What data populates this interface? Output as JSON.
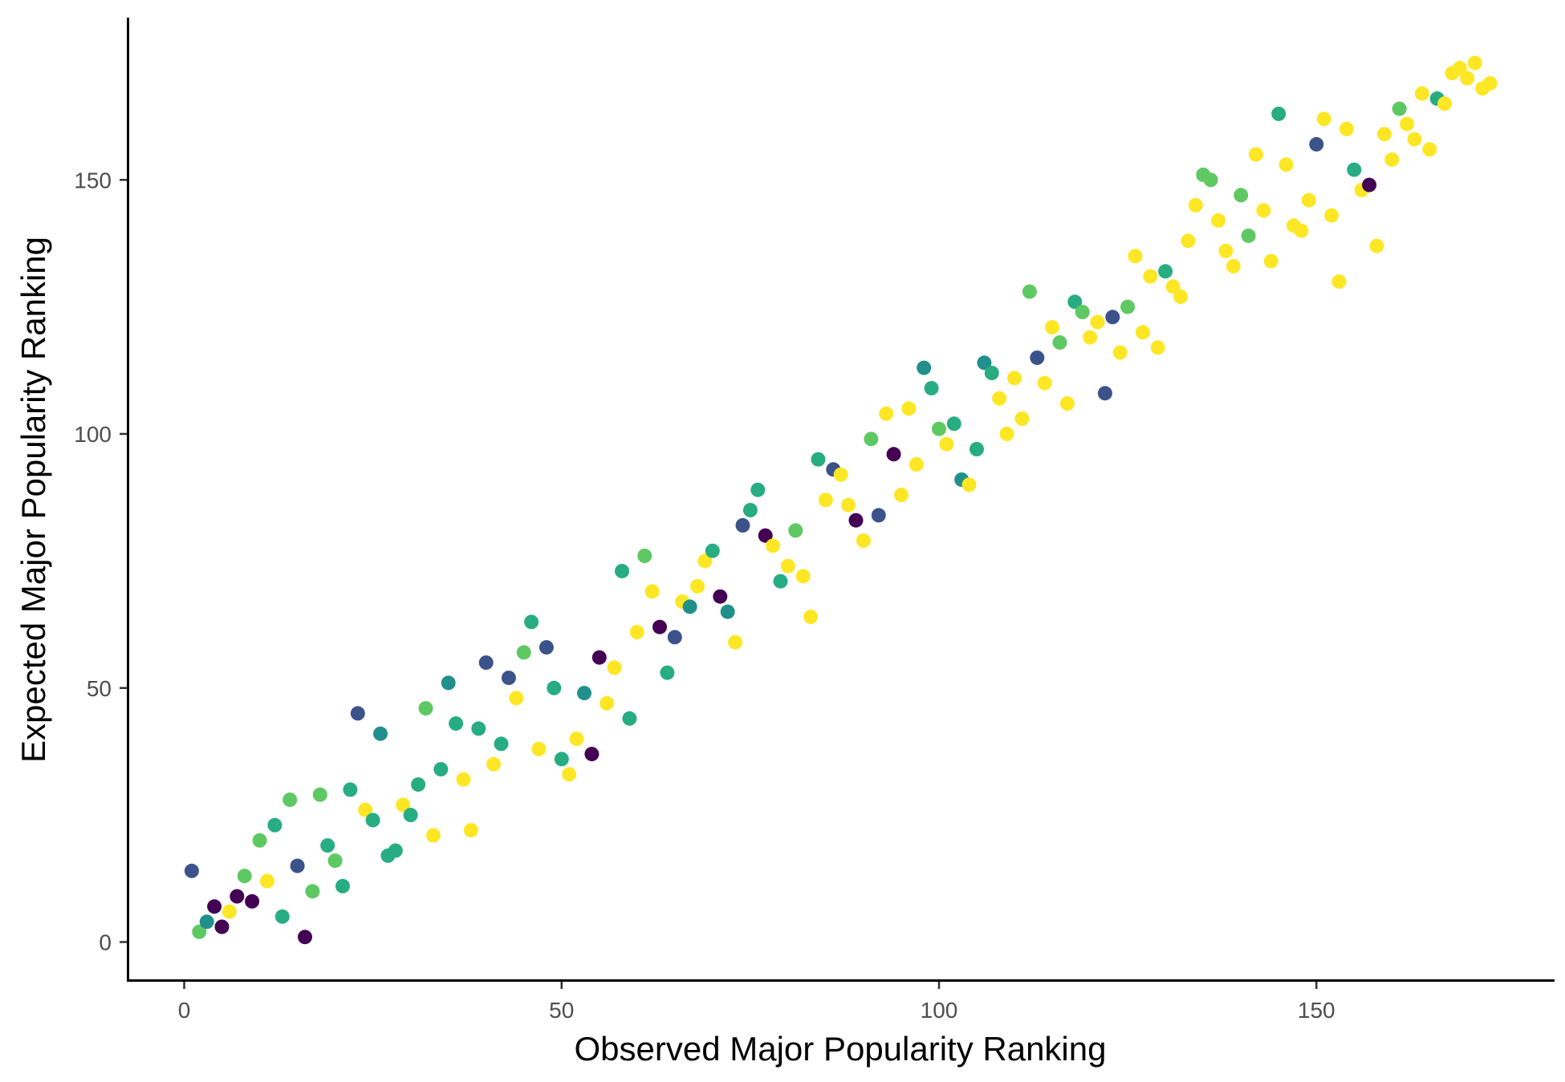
{
  "chart_data": {
    "type": "scatter",
    "title": "",
    "xlabel": "Observed Major Popularity Ranking",
    "ylabel": "Expected Major Popularity Ranking",
    "xlim": [
      -7.5,
      181
    ],
    "ylim": [
      -7.5,
      181
    ],
    "xticks": [
      0,
      50,
      100,
      150
    ],
    "yticks": [
      0,
      50,
      100,
      150
    ],
    "grid": false,
    "legend": "none",
    "palette": {
      "purple": "#440154",
      "indigo": "#3b528b",
      "teal": "#21908c",
      "green": "#27ad81",
      "lime": "#5ec962",
      "yellow": "#fde725"
    },
    "points": [
      {
        "x": 1,
        "y": 14,
        "c": "indigo"
      },
      {
        "x": 2,
        "y": 2,
        "c": "lime"
      },
      {
        "x": 3,
        "y": 4,
        "c": "teal"
      },
      {
        "x": 4,
        "y": 7,
        "c": "purple"
      },
      {
        "x": 5,
        "y": 3,
        "c": "purple"
      },
      {
        "x": 6,
        "y": 6,
        "c": "yellow"
      },
      {
        "x": 7,
        "y": 9,
        "c": "purple"
      },
      {
        "x": 8,
        "y": 13,
        "c": "lime"
      },
      {
        "x": 9,
        "y": 8,
        "c": "purple"
      },
      {
        "x": 10,
        "y": 20,
        "c": "lime"
      },
      {
        "x": 11,
        "y": 12,
        "c": "yellow"
      },
      {
        "x": 12,
        "y": 23,
        "c": "green"
      },
      {
        "x": 13,
        "y": 5,
        "c": "green"
      },
      {
        "x": 14,
        "y": 28,
        "c": "lime"
      },
      {
        "x": 15,
        "y": 15,
        "c": "indigo"
      },
      {
        "x": 16,
        "y": 1,
        "c": "purple"
      },
      {
        "x": 17,
        "y": 10,
        "c": "lime"
      },
      {
        "x": 18,
        "y": 29,
        "c": "lime"
      },
      {
        "x": 19,
        "y": 19,
        "c": "green"
      },
      {
        "x": 20,
        "y": 16,
        "c": "lime"
      },
      {
        "x": 21,
        "y": 11,
        "c": "green"
      },
      {
        "x": 22,
        "y": 30,
        "c": "green"
      },
      {
        "x": 23,
        "y": 45,
        "c": "indigo"
      },
      {
        "x": 24,
        "y": 26,
        "c": "yellow"
      },
      {
        "x": 25,
        "y": 24,
        "c": "green"
      },
      {
        "x": 26,
        "y": 41,
        "c": "teal"
      },
      {
        "x": 27,
        "y": 17,
        "c": "green"
      },
      {
        "x": 28,
        "y": 18,
        "c": "green"
      },
      {
        "x": 29,
        "y": 27,
        "c": "yellow"
      },
      {
        "x": 30,
        "y": 25,
        "c": "green"
      },
      {
        "x": 31,
        "y": 31,
        "c": "green"
      },
      {
        "x": 32,
        "y": 46,
        "c": "lime"
      },
      {
        "x": 33,
        "y": 21,
        "c": "yellow"
      },
      {
        "x": 34,
        "y": 34,
        "c": "green"
      },
      {
        "x": 35,
        "y": 51,
        "c": "teal"
      },
      {
        "x": 36,
        "y": 43,
        "c": "green"
      },
      {
        "x": 37,
        "y": 32,
        "c": "yellow"
      },
      {
        "x": 38,
        "y": 22,
        "c": "yellow"
      },
      {
        "x": 39,
        "y": 42,
        "c": "green"
      },
      {
        "x": 40,
        "y": 55,
        "c": "indigo"
      },
      {
        "x": 41,
        "y": 35,
        "c": "yellow"
      },
      {
        "x": 42,
        "y": 39,
        "c": "green"
      },
      {
        "x": 43,
        "y": 52,
        "c": "indigo"
      },
      {
        "x": 44,
        "y": 48,
        "c": "yellow"
      },
      {
        "x": 45,
        "y": 57,
        "c": "lime"
      },
      {
        "x": 46,
        "y": 63,
        "c": "green"
      },
      {
        "x": 47,
        "y": 38,
        "c": "yellow"
      },
      {
        "x": 48,
        "y": 58,
        "c": "indigo"
      },
      {
        "x": 49,
        "y": 50,
        "c": "green"
      },
      {
        "x": 50,
        "y": 36,
        "c": "green"
      },
      {
        "x": 51,
        "y": 33,
        "c": "yellow"
      },
      {
        "x": 52,
        "y": 40,
        "c": "yellow"
      },
      {
        "x": 53,
        "y": 49,
        "c": "teal"
      },
      {
        "x": 54,
        "y": 37,
        "c": "purple"
      },
      {
        "x": 55,
        "y": 56,
        "c": "purple"
      },
      {
        "x": 56,
        "y": 47,
        "c": "yellow"
      },
      {
        "x": 57,
        "y": 54,
        "c": "yellow"
      },
      {
        "x": 58,
        "y": 73,
        "c": "green"
      },
      {
        "x": 59,
        "y": 44,
        "c": "green"
      },
      {
        "x": 60,
        "y": 61,
        "c": "yellow"
      },
      {
        "x": 61,
        "y": 76,
        "c": "lime"
      },
      {
        "x": 62,
        "y": 69,
        "c": "yellow"
      },
      {
        "x": 63,
        "y": 62,
        "c": "purple"
      },
      {
        "x": 64,
        "y": 53,
        "c": "green"
      },
      {
        "x": 65,
        "y": 60,
        "c": "indigo"
      },
      {
        "x": 66,
        "y": 67,
        "c": "yellow"
      },
      {
        "x": 67,
        "y": 66,
        "c": "teal"
      },
      {
        "x": 68,
        "y": 70,
        "c": "yellow"
      },
      {
        "x": 69,
        "y": 75,
        "c": "yellow"
      },
      {
        "x": 70,
        "y": 77,
        "c": "green"
      },
      {
        "x": 71,
        "y": 68,
        "c": "purple"
      },
      {
        "x": 72,
        "y": 65,
        "c": "teal"
      },
      {
        "x": 73,
        "y": 59,
        "c": "yellow"
      },
      {
        "x": 74,
        "y": 82,
        "c": "indigo"
      },
      {
        "x": 75,
        "y": 85,
        "c": "green"
      },
      {
        "x": 76,
        "y": 89,
        "c": "green"
      },
      {
        "x": 77,
        "y": 80,
        "c": "purple"
      },
      {
        "x": 78,
        "y": 78,
        "c": "yellow"
      },
      {
        "x": 79,
        "y": 71,
        "c": "green"
      },
      {
        "x": 80,
        "y": 74,
        "c": "yellow"
      },
      {
        "x": 81,
        "y": 81,
        "c": "lime"
      },
      {
        "x": 82,
        "y": 72,
        "c": "yellow"
      },
      {
        "x": 83,
        "y": 64,
        "c": "yellow"
      },
      {
        "x": 84,
        "y": 95,
        "c": "green"
      },
      {
        "x": 85,
        "y": 87,
        "c": "yellow"
      },
      {
        "x": 86,
        "y": 93,
        "c": "indigo"
      },
      {
        "x": 87,
        "y": 92,
        "c": "yellow"
      },
      {
        "x": 88,
        "y": 86,
        "c": "yellow"
      },
      {
        "x": 89,
        "y": 83,
        "c": "purple"
      },
      {
        "x": 90,
        "y": 79,
        "c": "yellow"
      },
      {
        "x": 91,
        "y": 99,
        "c": "lime"
      },
      {
        "x": 92,
        "y": 84,
        "c": "indigo"
      },
      {
        "x": 93,
        "y": 104,
        "c": "yellow"
      },
      {
        "x": 94,
        "y": 96,
        "c": "purple"
      },
      {
        "x": 95,
        "y": 88,
        "c": "yellow"
      },
      {
        "x": 96,
        "y": 105,
        "c": "yellow"
      },
      {
        "x": 97,
        "y": 94,
        "c": "yellow"
      },
      {
        "x": 98,
        "y": 113,
        "c": "teal"
      },
      {
        "x": 99,
        "y": 109,
        "c": "green"
      },
      {
        "x": 100,
        "y": 101,
        "c": "lime"
      },
      {
        "x": 101,
        "y": 98,
        "c": "yellow"
      },
      {
        "x": 102,
        "y": 102,
        "c": "green"
      },
      {
        "x": 103,
        "y": 91,
        "c": "teal"
      },
      {
        "x": 104,
        "y": 90,
        "c": "yellow"
      },
      {
        "x": 105,
        "y": 97,
        "c": "green"
      },
      {
        "x": 106,
        "y": 114,
        "c": "teal"
      },
      {
        "x": 107,
        "y": 112,
        "c": "green"
      },
      {
        "x": 108,
        "y": 107,
        "c": "yellow"
      },
      {
        "x": 109,
        "y": 100,
        "c": "yellow"
      },
      {
        "x": 110,
        "y": 111,
        "c": "yellow"
      },
      {
        "x": 111,
        "y": 103,
        "c": "yellow"
      },
      {
        "x": 112,
        "y": 128,
        "c": "lime"
      },
      {
        "x": 113,
        "y": 115,
        "c": "indigo"
      },
      {
        "x": 114,
        "y": 110,
        "c": "yellow"
      },
      {
        "x": 115,
        "y": 121,
        "c": "yellow"
      },
      {
        "x": 116,
        "y": 118,
        "c": "lime"
      },
      {
        "x": 117,
        "y": 106,
        "c": "yellow"
      },
      {
        "x": 118,
        "y": 126,
        "c": "green"
      },
      {
        "x": 119,
        "y": 124,
        "c": "lime"
      },
      {
        "x": 120,
        "y": 119,
        "c": "yellow"
      },
      {
        "x": 121,
        "y": 122,
        "c": "yellow"
      },
      {
        "x": 122,
        "y": 108,
        "c": "indigo"
      },
      {
        "x": 123,
        "y": 123,
        "c": "indigo"
      },
      {
        "x": 124,
        "y": 116,
        "c": "yellow"
      },
      {
        "x": 125,
        "y": 125,
        "c": "lime"
      },
      {
        "x": 126,
        "y": 135,
        "c": "yellow"
      },
      {
        "x": 127,
        "y": 120,
        "c": "yellow"
      },
      {
        "x": 128,
        "y": 131,
        "c": "yellow"
      },
      {
        "x": 129,
        "y": 117,
        "c": "yellow"
      },
      {
        "x": 130,
        "y": 132,
        "c": "green"
      },
      {
        "x": 131,
        "y": 129,
        "c": "yellow"
      },
      {
        "x": 132,
        "y": 127,
        "c": "yellow"
      },
      {
        "x": 133,
        "y": 138,
        "c": "yellow"
      },
      {
        "x": 134,
        "y": 145,
        "c": "yellow"
      },
      {
        "x": 135,
        "y": 151,
        "c": "lime"
      },
      {
        "x": 136,
        "y": 150,
        "c": "lime"
      },
      {
        "x": 137,
        "y": 142,
        "c": "yellow"
      },
      {
        "x": 138,
        "y": 136,
        "c": "yellow"
      },
      {
        "x": 139,
        "y": 133,
        "c": "yellow"
      },
      {
        "x": 140,
        "y": 147,
        "c": "lime"
      },
      {
        "x": 141,
        "y": 139,
        "c": "lime"
      },
      {
        "x": 142,
        "y": 155,
        "c": "yellow"
      },
      {
        "x": 143,
        "y": 144,
        "c": "yellow"
      },
      {
        "x": 144,
        "y": 134,
        "c": "yellow"
      },
      {
        "x": 145,
        "y": 163,
        "c": "green"
      },
      {
        "x": 146,
        "y": 153,
        "c": "yellow"
      },
      {
        "x": 147,
        "y": 141,
        "c": "yellow"
      },
      {
        "x": 148,
        "y": 140,
        "c": "yellow"
      },
      {
        "x": 149,
        "y": 146,
        "c": "yellow"
      },
      {
        "x": 150,
        "y": 157,
        "c": "indigo"
      },
      {
        "x": 151,
        "y": 162,
        "c": "yellow"
      },
      {
        "x": 152,
        "y": 143,
        "c": "yellow"
      },
      {
        "x": 153,
        "y": 130,
        "c": "yellow"
      },
      {
        "x": 154,
        "y": 160,
        "c": "yellow"
      },
      {
        "x": 155,
        "y": 152,
        "c": "green"
      },
      {
        "x": 156,
        "y": 148,
        "c": "yellow"
      },
      {
        "x": 157,
        "y": 149,
        "c": "purple"
      },
      {
        "x": 158,
        "y": 137,
        "c": "yellow"
      },
      {
        "x": 159,
        "y": 159,
        "c": "yellow"
      },
      {
        "x": 160,
        "y": 154,
        "c": "yellow"
      },
      {
        "x": 161,
        "y": 164,
        "c": "lime"
      },
      {
        "x": 162,
        "y": 161,
        "c": "yellow"
      },
      {
        "x": 163,
        "y": 158,
        "c": "yellow"
      },
      {
        "x": 164,
        "y": 167,
        "c": "yellow"
      },
      {
        "x": 165,
        "y": 156,
        "c": "yellow"
      },
      {
        "x": 166,
        "y": 166,
        "c": "green"
      },
      {
        "x": 167,
        "y": 165,
        "c": "yellow"
      },
      {
        "x": 168,
        "y": 171,
        "c": "yellow"
      },
      {
        "x": 169,
        "y": 172,
        "c": "yellow"
      },
      {
        "x": 170,
        "y": 170,
        "c": "yellow"
      },
      {
        "x": 171,
        "y": 173,
        "c": "yellow"
      },
      {
        "x": 172,
        "y": 168,
        "c": "yellow"
      },
      {
        "x": 173,
        "y": 169,
        "c": "yellow"
      }
    ]
  }
}
